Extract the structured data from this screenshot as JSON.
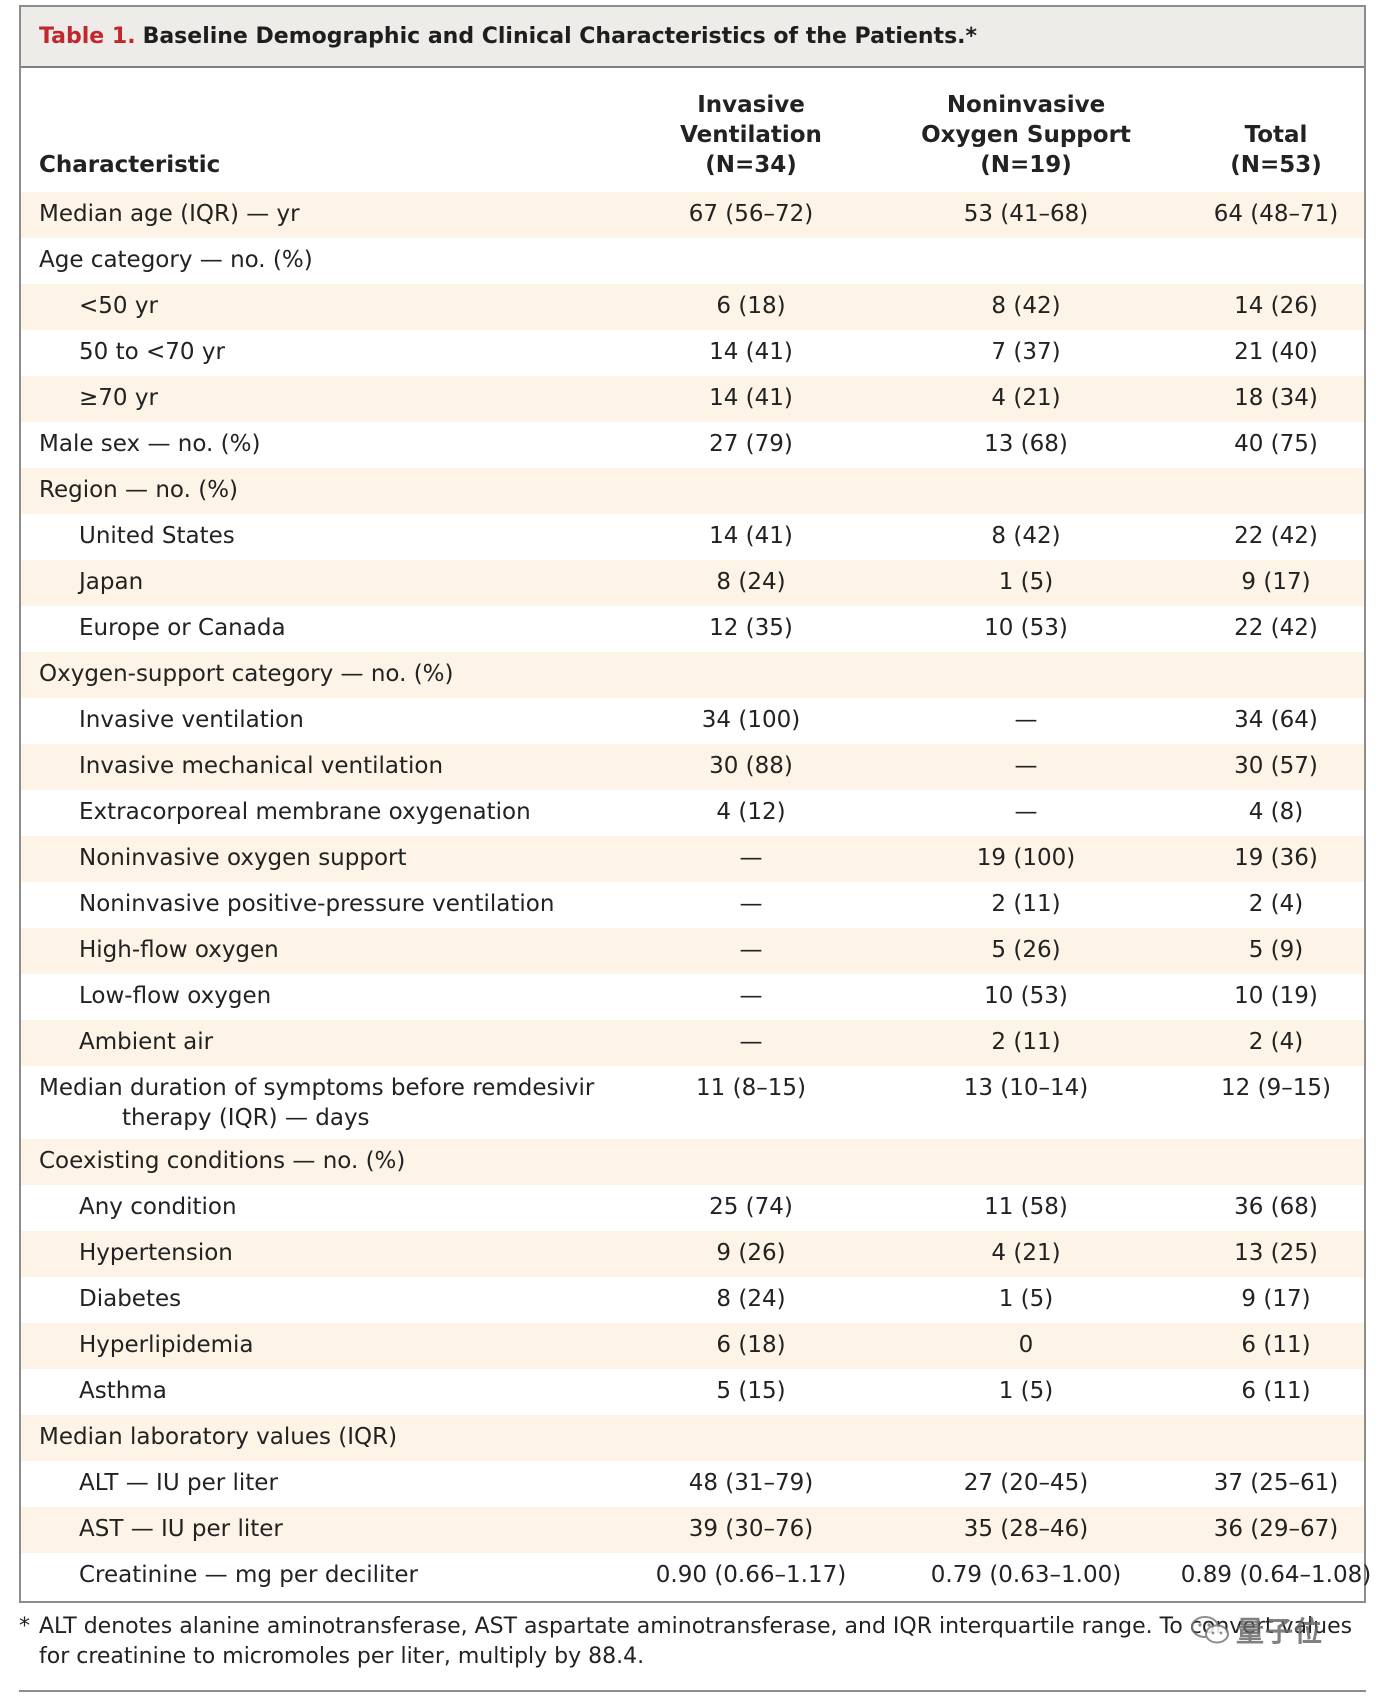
{
  "table": {
    "label": "Table 1.",
    "title": "Baseline Demographic and Clinical Characteristics of the Patients.*",
    "headers": {
      "characteristic": "Characteristic",
      "col1": [
        "Invasive",
        "Ventilation",
        "(N=34)"
      ],
      "col2": [
        "Noninvasive",
        "Oxygen Support",
        "(N=19)"
      ],
      "col3": [
        "Total",
        "(N=53)"
      ]
    },
    "rows": [
      {
        "label": "Median age (IQR) — yr",
        "indent": false,
        "values": [
          "67 (56–72)",
          "53 (41–68)",
          "64 (48–71)"
        ]
      },
      {
        "label": "Age category — no. (%)",
        "indent": false,
        "values": [
          "",
          "",
          ""
        ]
      },
      {
        "label": "<50 yr",
        "indent": true,
        "values": [
          "6 (18)",
          "8 (42)",
          "14 (26)"
        ]
      },
      {
        "label": "50 to <70 yr",
        "indent": true,
        "values": [
          "14 (41)",
          "7 (37)",
          "21 (40)"
        ]
      },
      {
        "label": "≥70 yr",
        "indent": true,
        "values": [
          "14 (41)",
          "4 (21)",
          "18 (34)"
        ]
      },
      {
        "label": "Male sex — no. (%)",
        "indent": false,
        "values": [
          "27 (79)",
          "13 (68)",
          "40 (75)"
        ]
      },
      {
        "label": "Region — no. (%)",
        "indent": false,
        "values": [
          "",
          "",
          ""
        ]
      },
      {
        "label": "United States",
        "indent": true,
        "values": [
          "14 (41)",
          "8 (42)",
          "22 (42)"
        ]
      },
      {
        "label": "Japan",
        "indent": true,
        "values": [
          "8 (24)",
          "1 (5)",
          "9 (17)"
        ]
      },
      {
        "label": "Europe or Canada",
        "indent": true,
        "values": [
          "12 (35)",
          "10 (53)",
          "22 (42)"
        ]
      },
      {
        "label": "Oxygen-support category — no. (%)",
        "indent": false,
        "values": [
          "",
          "",
          ""
        ]
      },
      {
        "label": "Invasive ventilation",
        "indent": true,
        "values": [
          "34 (100)",
          "—",
          "34 (64)"
        ]
      },
      {
        "label": "Invasive mechanical ventilation",
        "indent": true,
        "values": [
          "30 (88)",
          "—",
          "30 (57)"
        ]
      },
      {
        "label": "Extracorporeal membrane oxygenation",
        "indent": true,
        "values": [
          "4 (12)",
          "—",
          "4 (8)"
        ]
      },
      {
        "label": "Noninvasive oxygen support",
        "indent": true,
        "values": [
          "—",
          "19 (100)",
          "19 (36)"
        ]
      },
      {
        "label": "Noninvasive positive-pressure ventilation",
        "indent": true,
        "values": [
          "—",
          "2 (11)",
          "2 (4)"
        ]
      },
      {
        "label": "High-flow oxygen",
        "indent": true,
        "values": [
          "—",
          "5 (26)",
          "5 (9)"
        ]
      },
      {
        "label": "Low-flow oxygen",
        "indent": true,
        "values": [
          "—",
          "10 (53)",
          "10 (19)"
        ]
      },
      {
        "label": "Ambient air",
        "indent": true,
        "values": [
          "—",
          "2 (11)",
          "2 (4)"
        ]
      },
      {
        "label": "Median duration of symptoms before remdesivir",
        "label2": "therapy (IQR) — days",
        "indent": false,
        "values": [
          "11 (8–15)",
          "13 (10–14)",
          "12 (9–15)"
        ]
      },
      {
        "label": "Coexisting conditions — no. (%)",
        "indent": false,
        "values": [
          "",
          "",
          ""
        ]
      },
      {
        "label": "Any condition",
        "indent": true,
        "values": [
          "25 (74)",
          "11 (58)",
          "36 (68)"
        ]
      },
      {
        "label": "Hypertension",
        "indent": true,
        "values": [
          "9 (26)",
          "4 (21)",
          "13 (25)"
        ]
      },
      {
        "label": "Diabetes",
        "indent": true,
        "values": [
          "8 (24)",
          "1 (5)",
          "9 (17)"
        ]
      },
      {
        "label": "Hyperlipidemia",
        "indent": true,
        "values": [
          "6 (18)",
          "0",
          "6 (11)"
        ]
      },
      {
        "label": "Asthma",
        "indent": true,
        "values": [
          "5 (15)",
          "1 (5)",
          "6 (11)"
        ]
      },
      {
        "label": "Median laboratory values (IQR)",
        "indent": false,
        "values": [
          "",
          "",
          ""
        ]
      },
      {
        "label": "ALT — IU per liter",
        "indent": true,
        "values": [
          "48 (31–79)",
          "27 (20–45)",
          "37 (25–61)"
        ]
      },
      {
        "label": "AST — IU per liter",
        "indent": true,
        "values": [
          "39 (30–76)",
          "35 (28–46)",
          "36 (29–67)"
        ]
      },
      {
        "label": "Creatinine — mg per deciliter",
        "indent": true,
        "values": [
          "0.90 (0.66–1.17)",
          "0.79 (0.63–1.00)",
          "0.89 (0.64–1.08)"
        ]
      }
    ]
  },
  "footnote": {
    "marker": "*",
    "text": "ALT denotes alanine aminotransferase, AST aspartate aminotransferase, and IQR interquartile range. To convert values for creatinine to micromoles per liter, multiply by 88.4."
  },
  "watermark": {
    "text": "量子位",
    "icon": "wechat-icon"
  }
}
